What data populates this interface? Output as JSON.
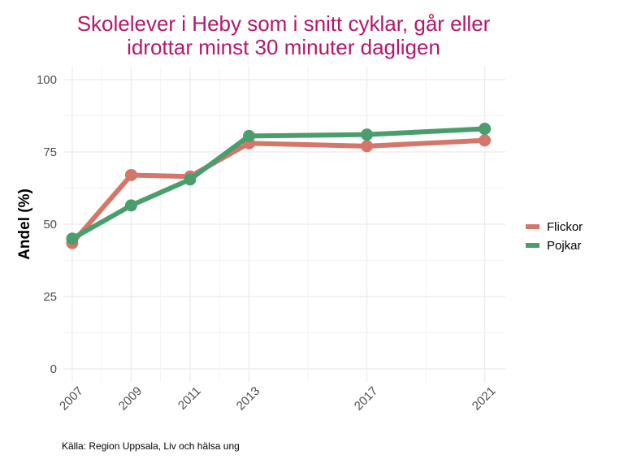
{
  "chart_data": {
    "type": "line",
    "title_lines": [
      "Skolelever i Heby som i snitt cyklar, går eller",
      "idrottar minst 30 minuter dagligen"
    ],
    "title_color": "#b5176d",
    "ylabel": "Andel (%)",
    "xlabel": "",
    "x": [
      2007,
      2009,
      2011,
      2013,
      2017,
      2021
    ],
    "x_tick_labels": [
      "2007",
      "2009",
      "2011",
      "2013",
      "2017",
      "2021"
    ],
    "ylim": [
      0,
      100
    ],
    "y_ticks": [
      0,
      25,
      50,
      75,
      100
    ],
    "grid": true,
    "legend_position": "right",
    "series": [
      {
        "name": "Flickor",
        "color": "#d4766a",
        "values": [
          43.5,
          67,
          66.5,
          78,
          77,
          79
        ]
      },
      {
        "name": "Pojkar",
        "color": "#4a9e6e",
        "values": [
          45,
          56.5,
          65.5,
          80.5,
          81,
          83
        ]
      }
    ],
    "caption": "Källa: Region Uppsala, Liv och hälsa ung"
  }
}
